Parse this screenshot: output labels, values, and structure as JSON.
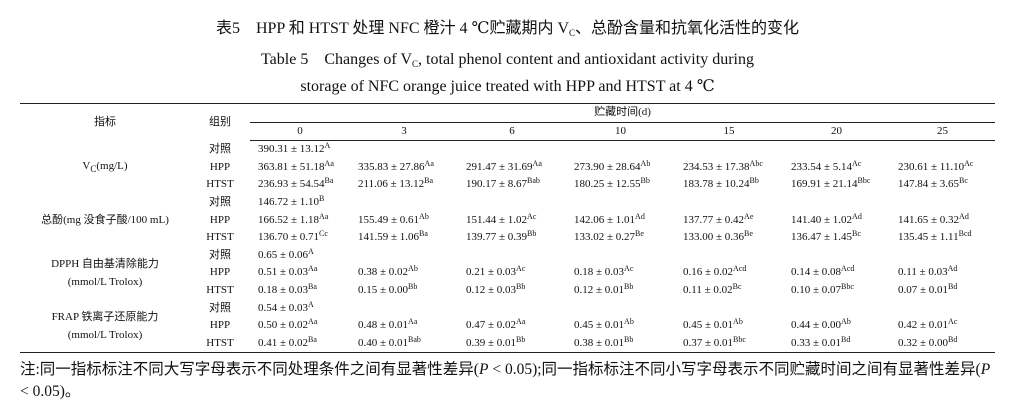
{
  "title_cn": {
    "pre": "表5　HPP 和 HTST 处理 NFC 橙汁 4 ℃贮藏期内 V",
    "sub": "C",
    "post": "、总酚含量和抗氧化活性的变化"
  },
  "title_en": {
    "pre": "Table 5　Changes of V",
    "sub": "C",
    "post": ", total phenol content and antioxidant activity during",
    "line2": "storage of NFC orange juice treated with HPP and HTST at 4 ℃"
  },
  "table": {
    "head_indicator": "指标",
    "head_group": "组别",
    "head_time": "贮藏时间(d)",
    "days": [
      0,
      3,
      6,
      10,
      15,
      20,
      25
    ],
    "groups": [
      {
        "label": "V",
        "label_sub": "C",
        "label_rest": "(mg/L)",
        "rows": [
          {
            "group": "对照",
            "cells": [
              [
                "390.31 ± 13.12",
                "A"
              ]
            ]
          },
          {
            "group": "HPP",
            "cells": [
              [
                "363.81 ± 51.18",
                "Aa"
              ],
              [
                "335.83 ± 27.86",
                "Aa"
              ],
              [
                "291.47 ± 31.69",
                "Aa"
              ],
              [
                "273.90 ± 28.64",
                "Ab"
              ],
              [
                "234.53 ± 17.38",
                "Abc"
              ],
              [
                "233.54 ± 5.14",
                "Ac"
              ],
              [
                "230.61 ± 11.10",
                "Ac"
              ]
            ]
          },
          {
            "group": "HTST",
            "cells": [
              [
                "236.93 ± 54.54",
                "Ba"
              ],
              [
                "211.06 ± 13.12",
                "Ba"
              ],
              [
                "190.17 ± 8.67",
                "Bab"
              ],
              [
                "180.25 ± 12.55",
                "Bb"
              ],
              [
                "183.78 ± 10.24",
                "Bb"
              ],
              [
                "169.91 ± 21.14",
                "Bbc"
              ],
              [
                "147.84 ± 3.65",
                "Bc"
              ]
            ]
          }
        ]
      },
      {
        "label": "总酚(mg 没食子酸/100 mL)",
        "rows": [
          {
            "group": "对照",
            "cells": [
              [
                "146.72 ± 1.10",
                "B"
              ]
            ]
          },
          {
            "group": "HPP",
            "cells": [
              [
                "166.52 ± 1.18",
                "Aa"
              ],
              [
                "155.49 ± 0.61",
                "Ab"
              ],
              [
                "151.44 ± 1.02",
                "Ac"
              ],
              [
                "142.06 ± 1.01",
                "Ad"
              ],
              [
                "137.77 ± 0.42",
                "Ae"
              ],
              [
                "141.40 ± 1.02",
                "Ad"
              ],
              [
                "141.65 ± 0.32",
                "Ad"
              ]
            ]
          },
          {
            "group": "HTST",
            "cells": [
              [
                "136.70 ± 0.71",
                "Cc"
              ],
              [
                "141.59 ± 1.06",
                "Ba"
              ],
              [
                "139.77 ± 0.39",
                "Bb"
              ],
              [
                "133.02 ± 0.27",
                "Be"
              ],
              [
                "133.00 ± 0.36",
                "Be"
              ],
              [
                "136.47 ± 1.45",
                "Bc"
              ],
              [
                "135.45 ± 1.11",
                "Bcd"
              ]
            ]
          }
        ]
      },
      {
        "label": "DPPH 自由基清除能力",
        "label_line2": "(mmol/L Trolox)",
        "rows": [
          {
            "group": "对照",
            "cells": [
              [
                "0.65 ± 0.06",
                "A"
              ]
            ]
          },
          {
            "group": "HPP",
            "cells": [
              [
                "0.51 ± 0.03",
                "Aa"
              ],
              [
                "0.38 ± 0.02",
                "Ab"
              ],
              [
                "0.21 ± 0.03",
                "Ac"
              ],
              [
                "0.18 ± 0.03",
                "Ac"
              ],
              [
                "0.16 ± 0.02",
                "Acd"
              ],
              [
                "0.14 ± 0.08",
                "Acd"
              ],
              [
                "0.11 ± 0.03",
                "Ad"
              ]
            ]
          },
          {
            "group": "HTST",
            "cells": [
              [
                "0.18 ± 0.03",
                "Ba"
              ],
              [
                "0.15 ± 0.00",
                "Bb"
              ],
              [
                "0.12 ± 0.03",
                "Bb"
              ],
              [
                "0.12 ± 0.01",
                "Bb"
              ],
              [
                "0.11 ± 0.02",
                "Bc"
              ],
              [
                "0.10 ± 0.07",
                "Bbc"
              ],
              [
                "0.07 ± 0.01",
                "Bd"
              ]
            ]
          }
        ]
      },
      {
        "label": "FRAP 铁离子还原能力",
        "label_line2": "(mmol/L Trolox)",
        "rows": [
          {
            "group": "对照",
            "cells": [
              [
                "0.54 ± 0.03",
                "A"
              ]
            ]
          },
          {
            "group": "HPP",
            "cells": [
              [
                "0.50 ± 0.02",
                "Aa"
              ],
              [
                "0.48 ± 0.01",
                "Aa"
              ],
              [
                "0.47 ± 0.02",
                "Aa"
              ],
              [
                "0.45 ± 0.01",
                "Ab"
              ],
              [
                "0.45 ± 0.01",
                "Ab"
              ],
              [
                "0.44 ± 0.00",
                "Ab"
              ],
              [
                "0.42 ± 0.01",
                "Ac"
              ]
            ]
          },
          {
            "group": "HTST",
            "cells": [
              [
                "0.41 ± 0.02",
                "Ba"
              ],
              [
                "0.40 ± 0.01",
                "Bab"
              ],
              [
                "0.39 ± 0.01",
                "Bb"
              ],
              [
                "0.38 ± 0.01",
                "Bb"
              ],
              [
                "0.37 ± 0.01",
                "Bbc"
              ],
              [
                "0.33 ± 0.01",
                "Bd"
              ],
              [
                "0.32 ± 0.00",
                "Bd"
              ]
            ]
          }
        ]
      }
    ]
  },
  "note": {
    "a": "注:同一指标标注不同大写字母表示不同处理条件之间有显著性差异(",
    "p1": "P",
    "b": " < 0.05);同一指标标注不同小写字母表示不同贮藏时间之间有显著性差异(",
    "p2": "P",
    "c": " < 0.05)。"
  }
}
